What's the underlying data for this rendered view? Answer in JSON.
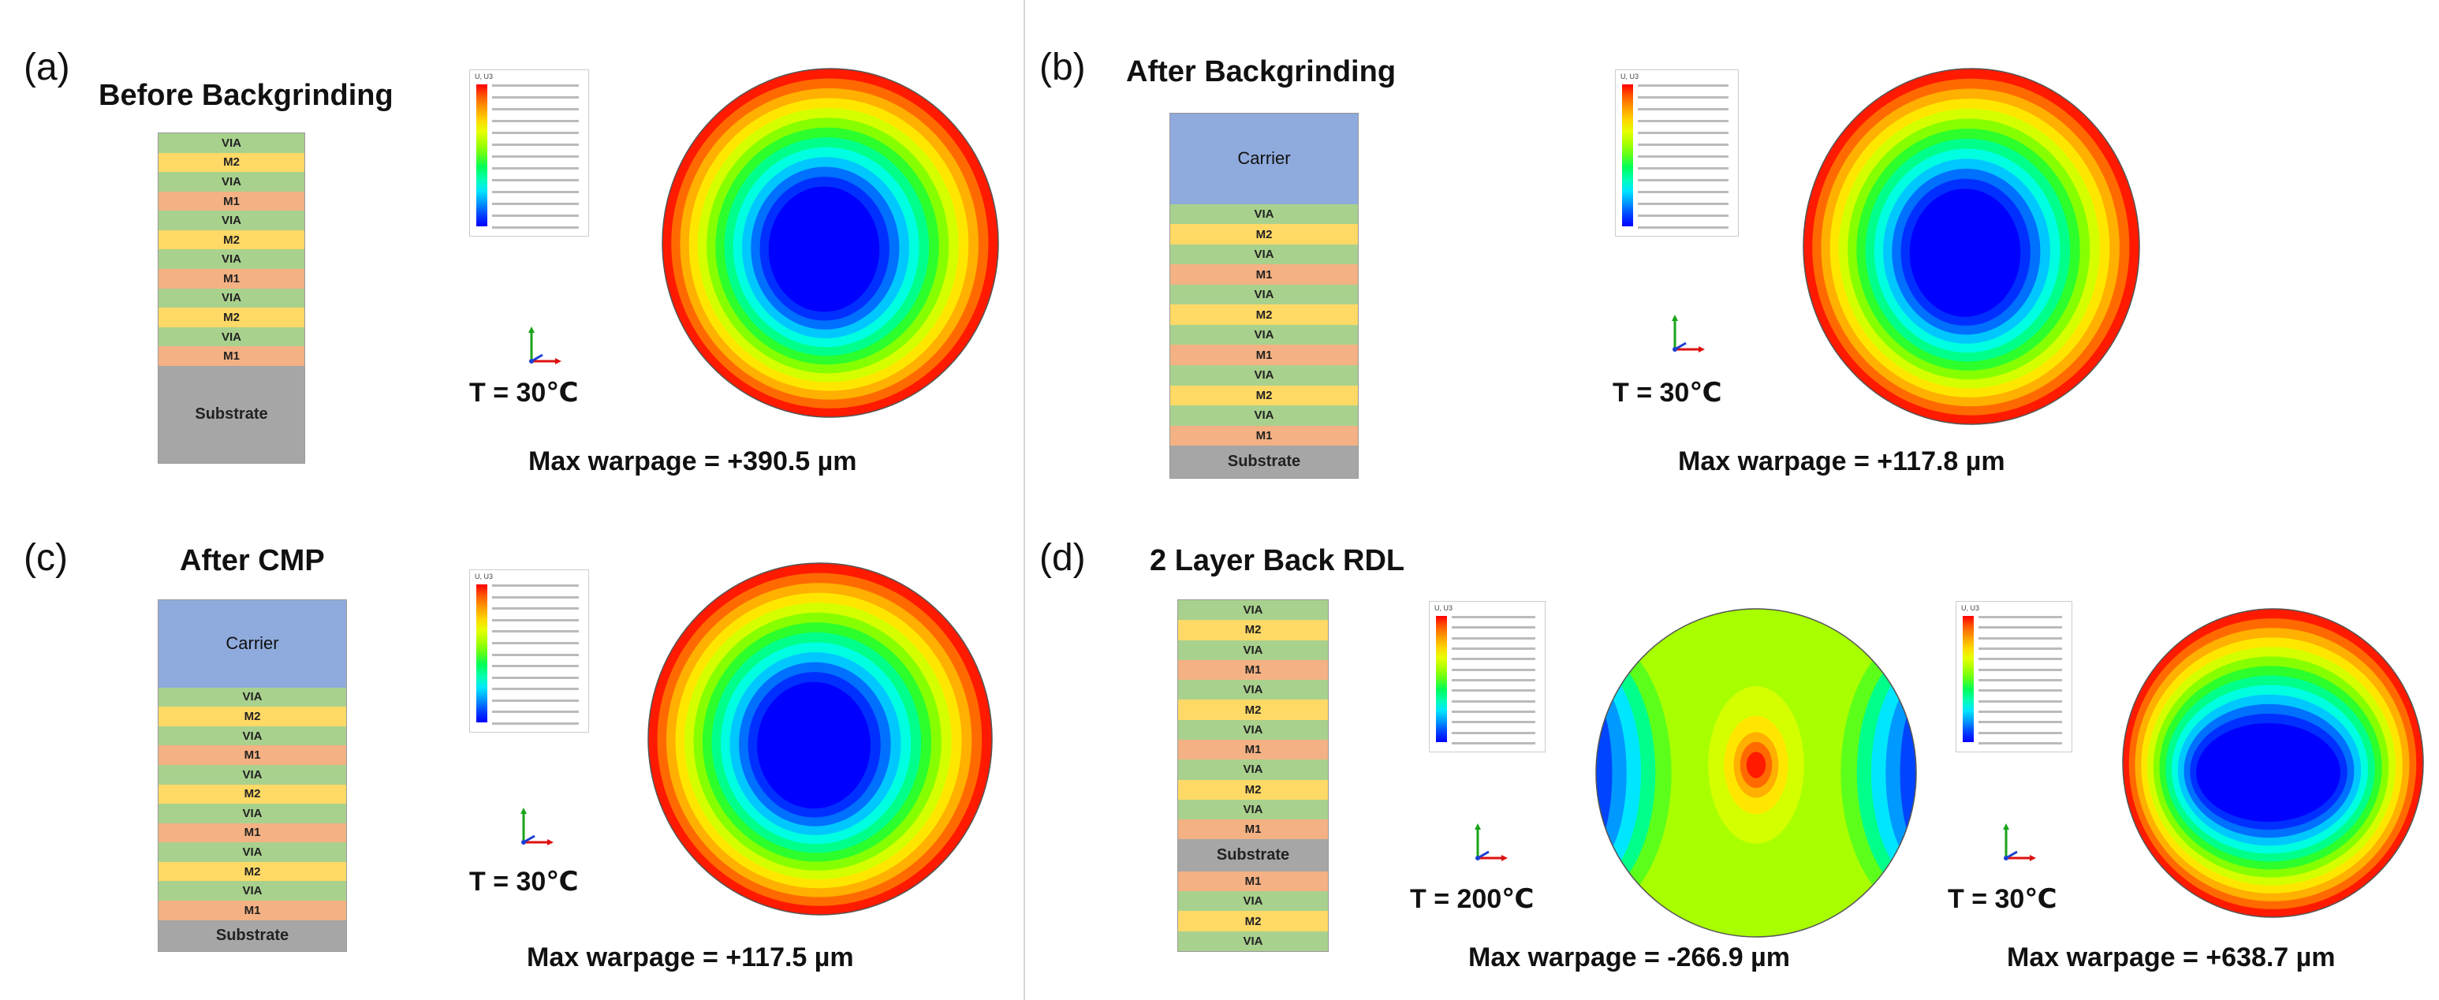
{
  "panels": {
    "a": {
      "label": "(a)",
      "title": "Before Backgrinding",
      "temp": "T = 30℃",
      "warpage": "Max warpage = +390.5 µm",
      "layers": [
        "VIA",
        "M2",
        "VIA",
        "M1",
        "VIA",
        "M2",
        "VIA",
        "M1",
        "VIA",
        "M2",
        "VIA",
        "M1",
        "Substrate"
      ]
    },
    "b": {
      "label": "(b)",
      "title": "After Backgrinding",
      "temp": "T = 30℃",
      "warpage": "Max warpage = +117.8 µm",
      "layers": [
        "Carrier",
        "VIA",
        "M2",
        "VIA",
        "M1",
        "VIA",
        "M2",
        "VIA",
        "M1",
        "VIA",
        "M2",
        "VIA",
        "M1",
        "Substrate"
      ]
    },
    "c": {
      "label": "(c)",
      "title": "After CMP",
      "temp": "T = 30℃",
      "warpage": "Max warpage = +117.5 µm",
      "layers": [
        "Carrier",
        "VIA",
        "M2",
        "VIA",
        "M1",
        "VIA",
        "M2",
        "VIA",
        "M1",
        "VIA",
        "M2",
        "VIA",
        "M1",
        "Substrate"
      ]
    },
    "d": {
      "label": "(d)",
      "title": "2 Layer Back RDL",
      "temp_left": "T = 200℃",
      "temp_right": "T = 30℃",
      "warpage_left": "Max warpage = -266.9 µm",
      "warpage_right": "Max warpage = +638.7 µm",
      "layers": [
        "VIA",
        "M2",
        "VIA",
        "M1",
        "VIA",
        "M2",
        "VIA",
        "M1",
        "VIA",
        "M2",
        "VIA",
        "M1",
        "Substrate",
        "M1",
        "VIA",
        "M2",
        "VIA"
      ]
    }
  },
  "legend_title": "U, U3",
  "colors": {
    "VIA": "#a9d18e",
    "M2": "#ffd966",
    "M1": "#f4b183",
    "Substrate": "#a6a6a6",
    "Carrier": "#8faadc"
  }
}
